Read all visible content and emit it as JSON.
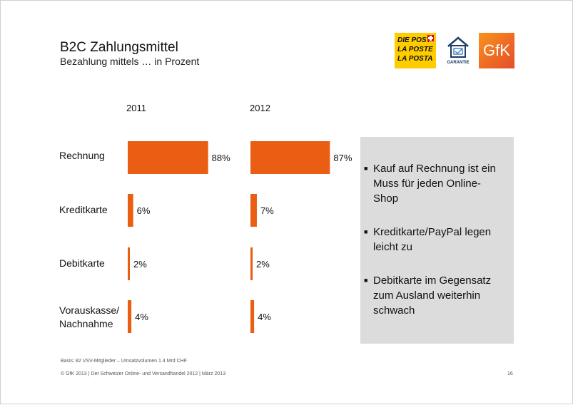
{
  "header": {
    "title": "B2C Zahlungsmittel",
    "subtitle": "Bezahlung mittels … in Prozent"
  },
  "logos": {
    "post_lines": [
      "DIE POST",
      "LA POSTE",
      "LA POSTA"
    ],
    "garantie": "GARANTIE",
    "gfk": "GfK"
  },
  "chart_data": {
    "type": "bar",
    "orientation": "horizontal",
    "categories": [
      "Rechnung",
      "Kreditkarte",
      "Debitkarte",
      "Vorauskasse/ Nachnahme"
    ],
    "category_lines": [
      [
        "Rechnung"
      ],
      [
        "Kreditkarte"
      ],
      [
        "Debitkarte"
      ],
      [
        "Vorauskasse/",
        "Nachnahme"
      ]
    ],
    "series": [
      {
        "name": "2011",
        "values": [
          88,
          6,
          2,
          4
        ],
        "labels": [
          "88%",
          "6%",
          "2%",
          "4%"
        ]
      },
      {
        "name": "2012",
        "values": [
          87,
          7,
          2,
          4
        ],
        "labels": [
          "87%",
          "7%",
          "2%",
          "4%"
        ]
      }
    ],
    "xlim": [
      0,
      100
    ],
    "bar_color": "#e95e12",
    "grid": false
  },
  "notes": [
    "Kauf auf Rechnung ist ein Muss für jeden Online-Shop",
    "Kreditkarte/PayPal legen leicht zu",
    "Debitkarte im Gegensatz zum Ausland weiterhin schwach"
  ],
  "footer": {
    "basis": "Basis: 82 VSV-Mitglieder – Umsatzvolumen 1.4 Mrd CHF",
    "copyright": "© GfK 2013 | Der Schweizer Online- und Versandhandel 2012 | März 2013",
    "page": "16"
  }
}
